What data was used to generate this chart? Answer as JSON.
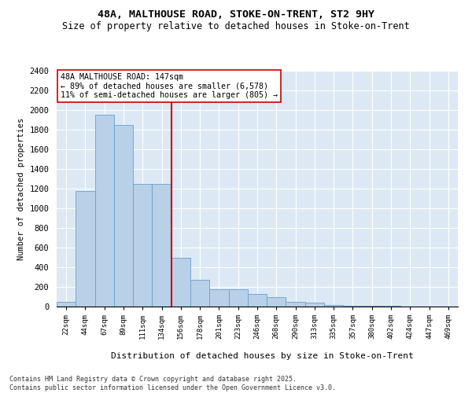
{
  "title_line1": "48A, MALTHOUSE ROAD, STOKE-ON-TRENT, ST2 9HY",
  "title_line2": "Size of property relative to detached houses in Stoke-on-Trent",
  "xlabel": "Distribution of detached houses by size in Stoke-on-Trent",
  "ylabel": "Number of detached properties",
  "categories": [
    "22sqm",
    "44sqm",
    "67sqm",
    "89sqm",
    "111sqm",
    "134sqm",
    "156sqm",
    "178sqm",
    "201sqm",
    "223sqm",
    "246sqm",
    "268sqm",
    "290sqm",
    "313sqm",
    "335sqm",
    "357sqm",
    "380sqm",
    "402sqm",
    "424sqm",
    "447sqm",
    "469sqm"
  ],
  "values": [
    50,
    1175,
    1950,
    1850,
    1250,
    1250,
    500,
    270,
    175,
    175,
    130,
    100,
    50,
    40,
    20,
    10,
    5,
    5,
    3,
    3,
    3
  ],
  "bar_color": "#b8d0e8",
  "bar_edge_color": "#6aa0cc",
  "vline_color": "#cc0000",
  "vline_x": 5.5,
  "annotation_text": "48A MALTHOUSE ROAD: 147sqm\n← 89% of detached houses are smaller (6,578)\n11% of semi-detached houses are larger (805) →",
  "annotation_box_color": "#ffffff",
  "annotation_box_edge": "#cc0000",
  "ylim": [
    0,
    2400
  ],
  "yticks": [
    0,
    200,
    400,
    600,
    800,
    1000,
    1200,
    1400,
    1600,
    1800,
    2000,
    2200,
    2400
  ],
  "plot_bg_color": "#dce9f5",
  "fig_bg_color": "#ffffff",
  "footer_line1": "Contains HM Land Registry data © Crown copyright and database right 2025.",
  "footer_line2": "Contains public sector information licensed under the Open Government Licence v3.0."
}
